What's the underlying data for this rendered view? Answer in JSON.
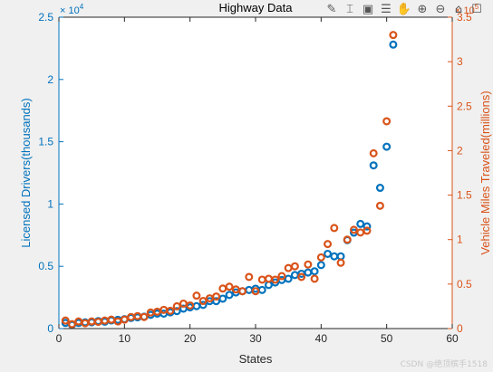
{
  "toolbar": {
    "icons": [
      "brush-icon",
      "datatip-icon",
      "insert-icon",
      "legend-icon",
      "pan-icon",
      "zoom-in-icon",
      "zoom-out-icon",
      "home-icon",
      "save-icon"
    ],
    "glyphs": [
      "✎",
      "⌶",
      "▣",
      "☰",
      "✋",
      "⊕",
      "⊖",
      "⌂",
      "☐"
    ]
  },
  "watermark": "CSDN @绝顶槟手1518",
  "chart_data": {
    "type": "scatter",
    "title": "Highway Data",
    "xlabel": "States",
    "ylabel_left": "Licensed Drivers(thousands)",
    "ylabel_right": "Vehicle Miles Traveled(millions)",
    "xlim": [
      0,
      60
    ],
    "ylim_left": [
      0,
      25000
    ],
    "ylim_right": [
      0,
      350000
    ],
    "x_ticks": [
      0,
      10,
      20,
      30,
      40,
      50,
      60
    ],
    "y_ticks_left": [
      0,
      0.5,
      1,
      1.5,
      2,
      2.5
    ],
    "y_ticks_right": [
      0,
      0.5,
      1,
      1.5,
      2,
      2.5,
      3,
      3.5
    ],
    "left_exponent": "× 10",
    "left_exponent_power": "4",
    "right_exponent": "× 10",
    "right_exponent_power": "5",
    "grid": false,
    "colors": {
      "left": "#0072BD",
      "right": "#D95319",
      "axis": "#262626",
      "plot_bg": "#ffffff",
      "figure_bg": "#f0f0f0"
    },
    "series": [
      {
        "axis": "left",
        "x": [
          1,
          2,
          3,
          4,
          5,
          6,
          7,
          8,
          9,
          10,
          11,
          12,
          13,
          14,
          15,
          16,
          17,
          18,
          19,
          20,
          21,
          22,
          23,
          24,
          25,
          26,
          27,
          28,
          29,
          30,
          31,
          32,
          33,
          34,
          35,
          36,
          37,
          38,
          39,
          40,
          41,
          42,
          43,
          44,
          45,
          46,
          47,
          48,
          49,
          50,
          51
        ],
        "y": [
          450,
          300,
          450,
          500,
          500,
          600,
          550,
          650,
          700,
          750,
          850,
          900,
          950,
          1100,
          1200,
          1200,
          1300,
          1400,
          1600,
          1700,
          1800,
          1900,
          2200,
          2200,
          2400,
          2700,
          2900,
          3000,
          3100,
          3200,
          3100,
          3500,
          3700,
          3900,
          4000,
          4300,
          4400,
          4500,
          4600,
          5100,
          6000,
          5800,
          5800,
          7100,
          7700,
          8400,
          8200,
          13100,
          11300,
          14600,
          22800
        ]
      },
      {
        "axis": "right",
        "x": [
          1,
          2,
          3,
          4,
          5,
          6,
          7,
          8,
          9,
          10,
          11,
          12,
          13,
          14,
          15,
          16,
          17,
          18,
          19,
          20,
          21,
          22,
          23,
          24,
          25,
          26,
          27,
          28,
          29,
          30,
          31,
          32,
          33,
          34,
          35,
          36,
          37,
          38,
          39,
          40,
          41,
          42,
          43,
          44,
          45,
          46,
          47,
          48,
          49,
          50,
          51
        ],
        "y": [
          9000,
          5000,
          8000,
          6000,
          8000,
          7500,
          9000,
          10000,
          8000,
          10000,
          13000,
          14000,
          13000,
          18000,
          19000,
          21000,
          20000,
          25000,
          28000,
          26000,
          37000,
          31000,
          34000,
          36000,
          45000,
          47000,
          44000,
          42000,
          58000,
          42000,
          55000,
          56000,
          55000,
          59000,
          68000,
          70000,
          58000,
          72000,
          56000,
          80000,
          95000,
          113000,
          74000,
          100000,
          111000,
          108000,
          110000,
          197000,
          138000,
          233000,
          330000
        ]
      }
    ]
  }
}
